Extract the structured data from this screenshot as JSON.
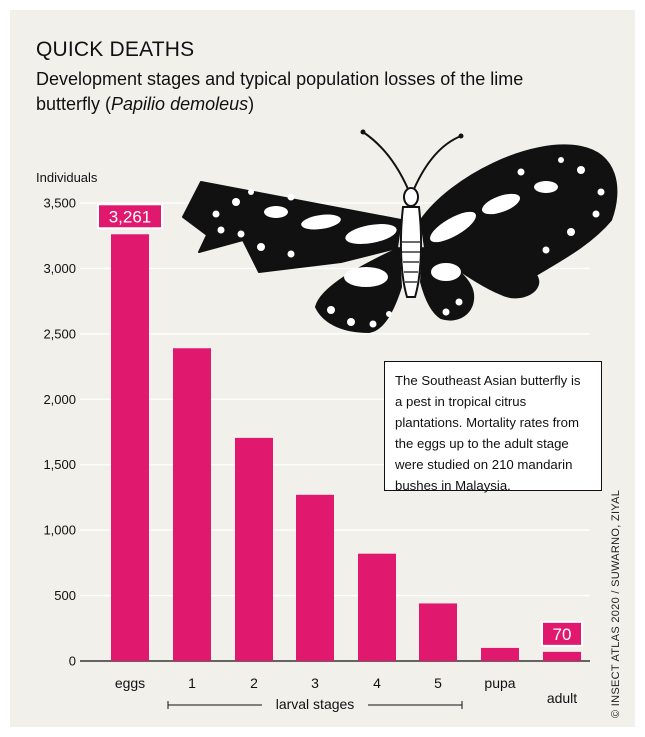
{
  "title": "QUICK DEATHS",
  "subtitle_pre": "Development stages and typical population losses of the lime butterfly (",
  "subtitle_sci": "Papilio demoleus",
  "subtitle_post": ")",
  "note": "The Southeast Asian butterfly is a pest in tropical citrus plantations. Mortality rates from the eggs up to the adult stage were studied on 210 mandarin bushes in Malaysia.",
  "credit": "© INSECT ATLAS 2020 / SUWARNO, ZIYAL",
  "colors": {
    "bar": "#e0196f",
    "panel": "#f1f0eb",
    "ink": "#111111"
  },
  "illustration": "butterfly-icon",
  "chart_data": {
    "type": "bar",
    "ylabel": "Individuals",
    "categories": [
      "eggs",
      "1",
      "2",
      "3",
      "4",
      "5",
      "pupa",
      "adult"
    ],
    "values": [
      3261,
      2390,
      1705,
      1270,
      820,
      440,
      100,
      70
    ],
    "yticks": [
      0,
      500,
      1000,
      1500,
      2000,
      2500,
      3000,
      3500
    ],
    "ytick_labels": [
      "0",
      "500",
      "1,000",
      "1,500",
      "2,000",
      "2,500",
      "3,000",
      "3,500"
    ],
    "ylim": [
      0,
      3500
    ],
    "group_label": "larval stages",
    "value_labels": [
      {
        "index": 0,
        "text": "3,261"
      },
      {
        "index": 7,
        "text": "70"
      }
    ]
  }
}
